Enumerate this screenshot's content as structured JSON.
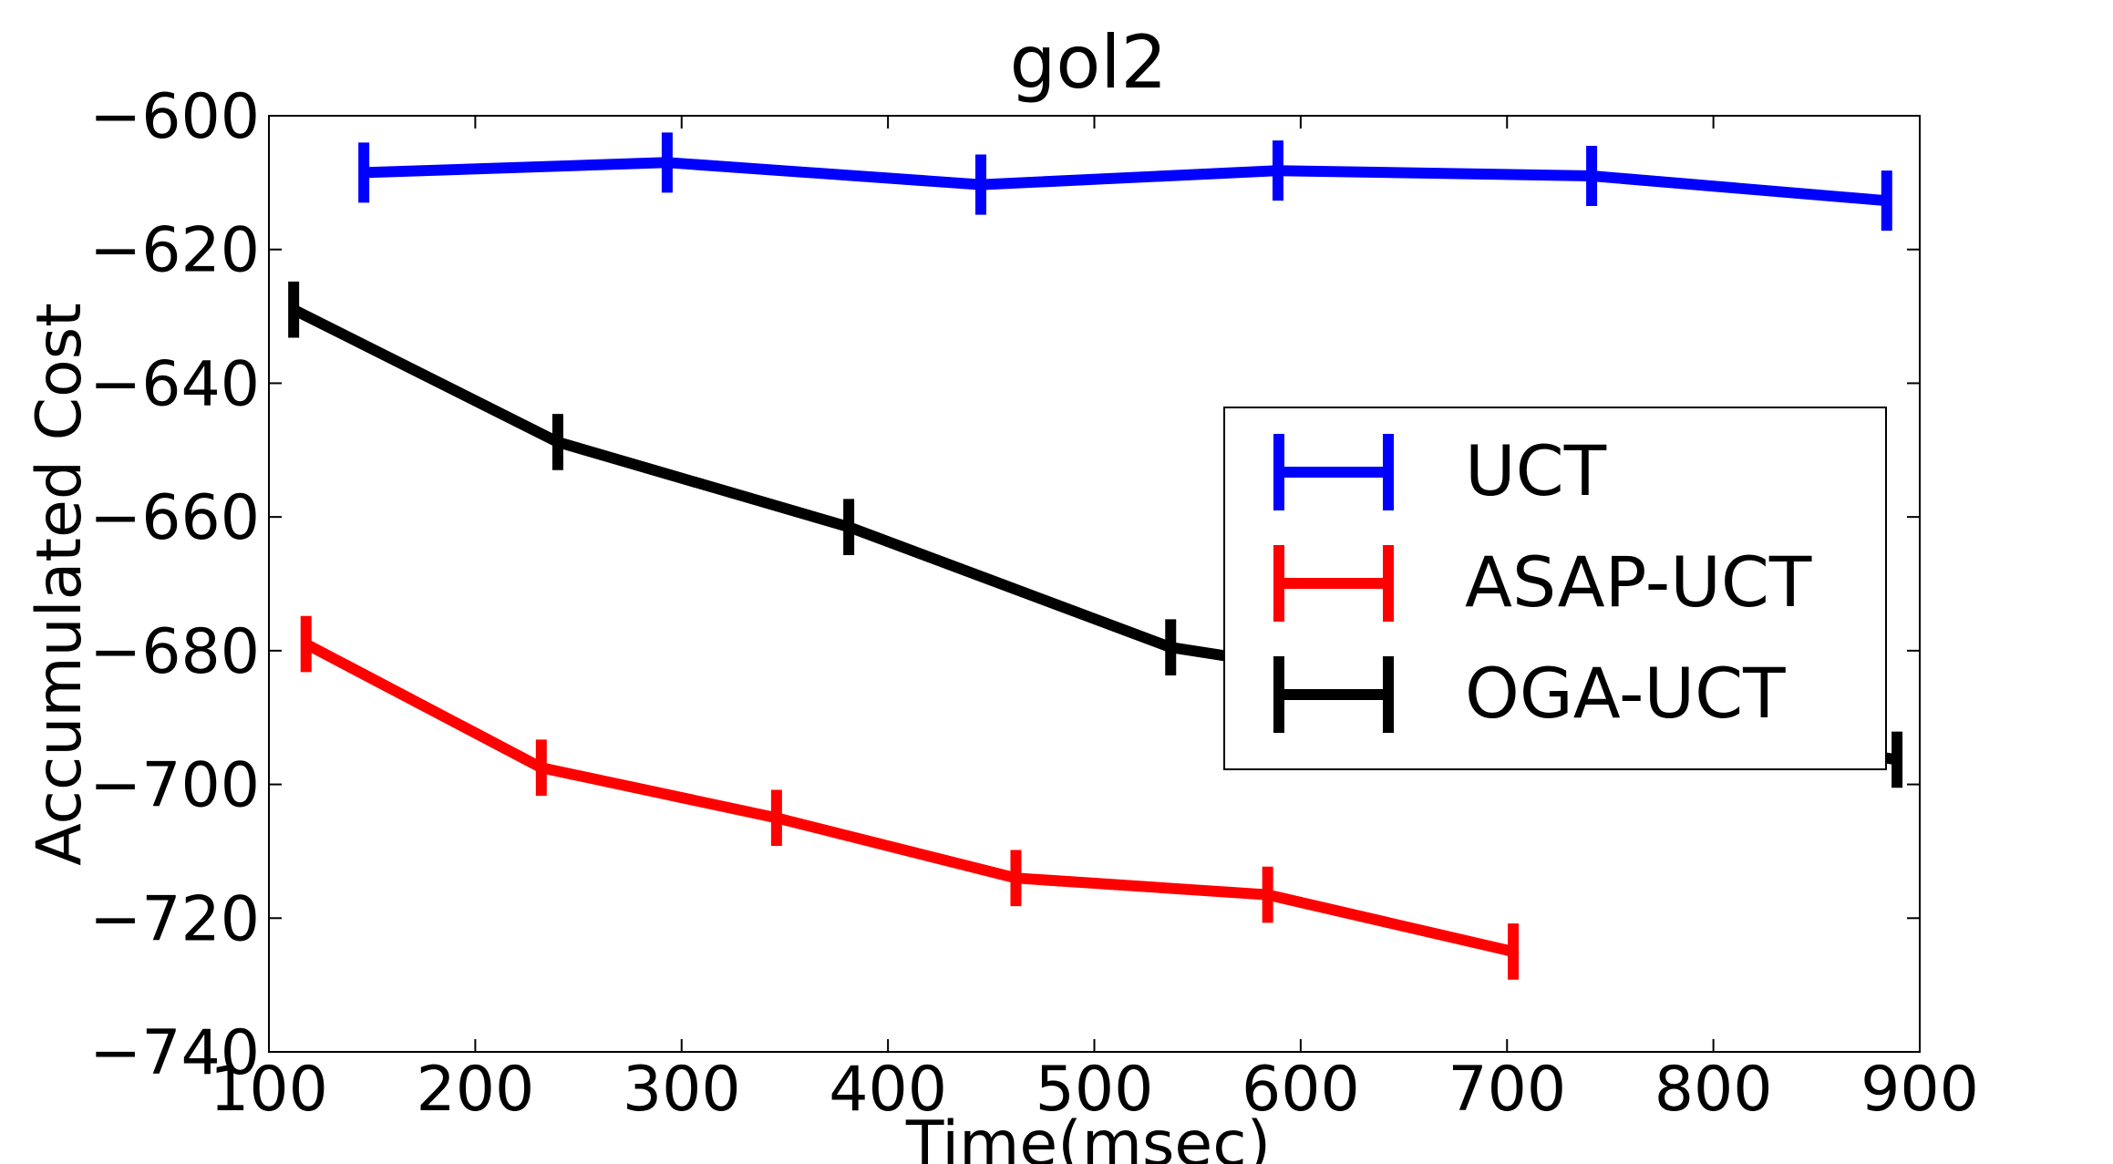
{
  "chart_data": {
    "type": "line",
    "title": "gol2",
    "xlabel": "Time(msec)",
    "ylabel": "Accumulated Cost",
    "xlim": [
      100,
      900
    ],
    "ylim": [
      -740,
      -600
    ],
    "xticks": [
      100,
      200,
      300,
      400,
      500,
      600,
      700,
      800,
      900
    ],
    "yticks": [
      -600,
      -620,
      -640,
      -660,
      -680,
      -700,
      -720,
      -740
    ],
    "xtick_labels": [
      "100",
      "200",
      "300",
      "400",
      "500",
      "600",
      "700",
      "800",
      "900"
    ],
    "ytick_labels": [
      "−600",
      "−620",
      "−640",
      "−660",
      "−680",
      "−700",
      "−720",
      "−740"
    ],
    "grid": false,
    "legend_position": "center-right",
    "series": [
      {
        "name": "UCT",
        "color": "#0000ff",
        "x": [
          146,
          293,
          445,
          589,
          741,
          884
        ],
        "y": [
          -608.5,
          -607,
          -610.3,
          -608.2,
          -609,
          -612.7
        ],
        "err": [
          4.5,
          4.5,
          4.5,
          4.5,
          4.5,
          4.5
        ]
      },
      {
        "name": "ASAP-UCT",
        "color": "#ff0000",
        "x": [
          118,
          232,
          346,
          462,
          584,
          703
        ],
        "y": [
          -679,
          -697.5,
          -705,
          -714,
          -716.5,
          -725
        ],
        "err": [
          4.2,
          4.2,
          4.2,
          4.2,
          4.2,
          4.2
        ]
      },
      {
        "name": "OGA-UCT",
        "color": "#000000",
        "x": [
          112,
          240,
          381,
          537,
          889
        ],
        "y": [
          -629,
          -648.8,
          -661.5,
          -679.5,
          -696.3
        ],
        "err": [
          4.2,
          4.2,
          4.2,
          4.2,
          4.2
        ]
      }
    ]
  }
}
